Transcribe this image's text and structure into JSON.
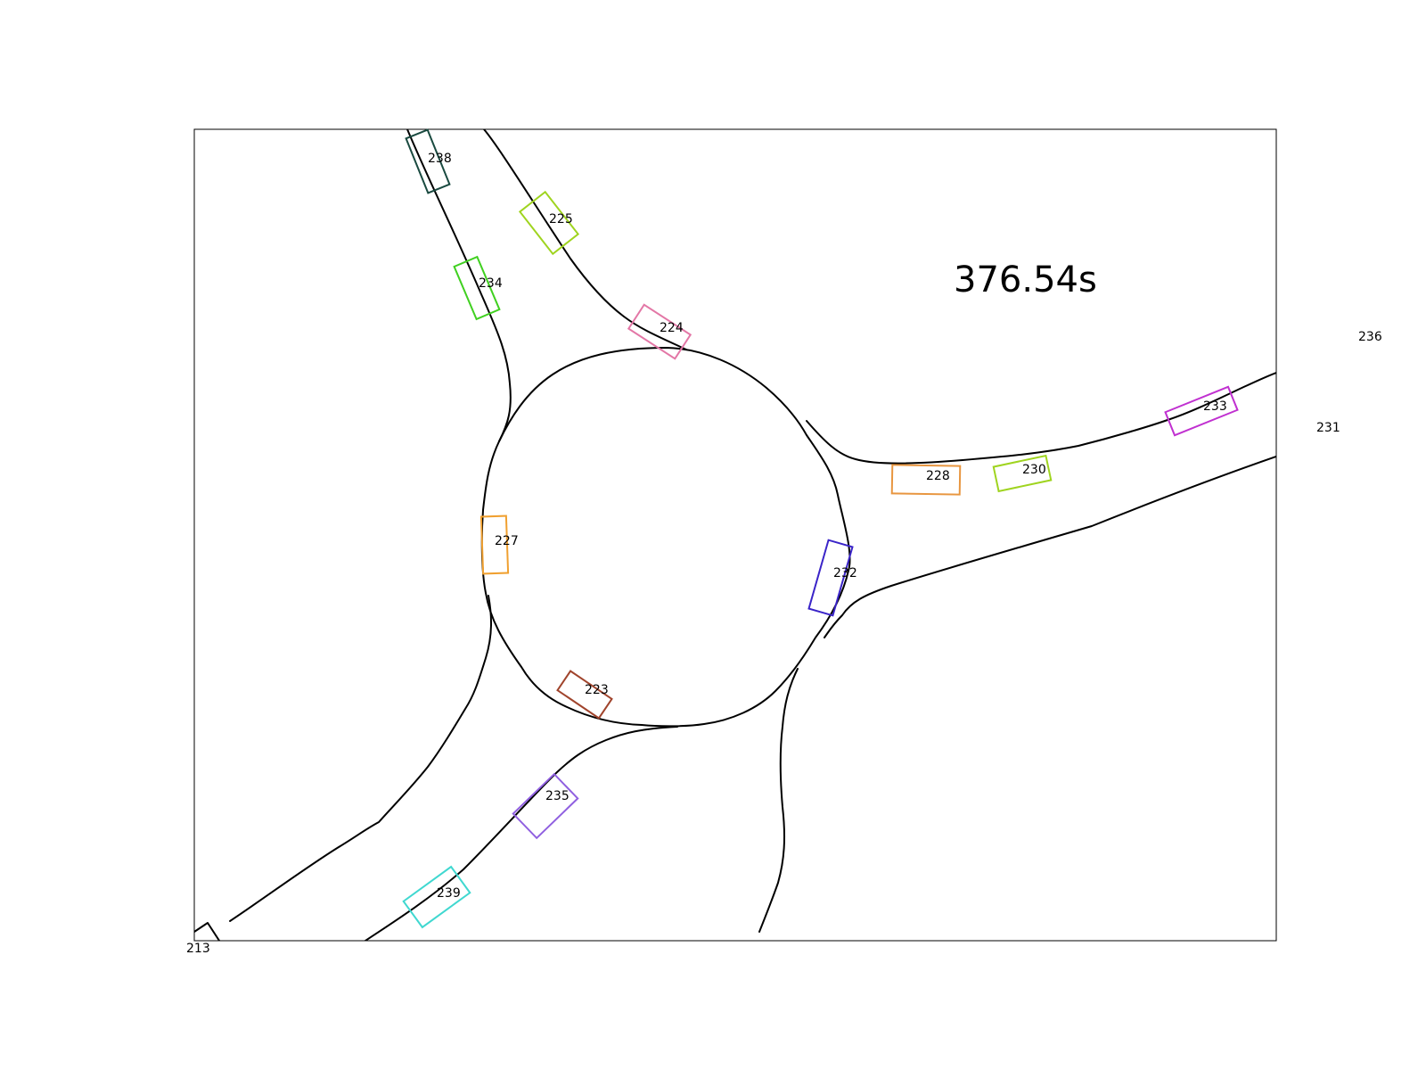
{
  "timestamp": "376.54s",
  "vehicles": [
    {
      "id": "213",
      "color": "#1a1a2e"
    },
    {
      "id": "223",
      "color": "#a0442c"
    },
    {
      "id": "224",
      "color": "#e377a6"
    },
    {
      "id": "225",
      "color": "#9fd41f"
    },
    {
      "id": "227",
      "color": "#f0a030"
    },
    {
      "id": "228",
      "color": "#e89640"
    },
    {
      "id": "230",
      "color": "#9fd41f"
    },
    {
      "id": "231",
      "color": "#ffffff"
    },
    {
      "id": "232",
      "color": "#3a24c8"
    },
    {
      "id": "233",
      "color": "#c030d0"
    },
    {
      "id": "234",
      "color": "#40d020"
    },
    {
      "id": "235",
      "color": "#9060e0"
    },
    {
      "id": "236",
      "color": "#ffffff"
    },
    {
      "id": "238",
      "color": "#1a4a40"
    },
    {
      "id": "239",
      "color": "#40d8d0"
    }
  ]
}
